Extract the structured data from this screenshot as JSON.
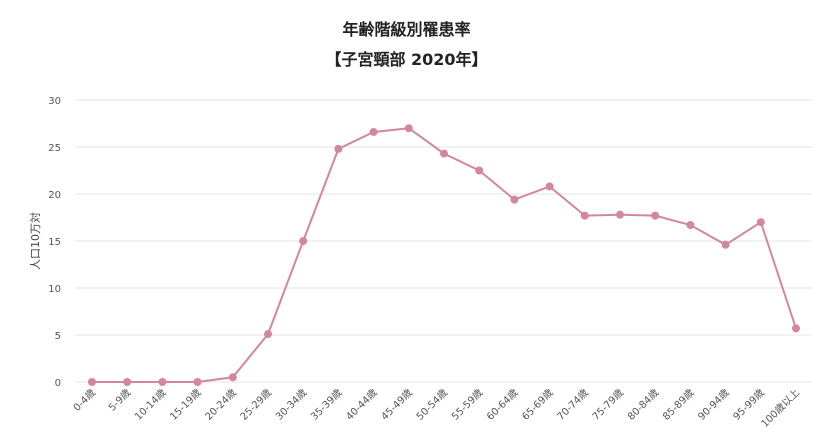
{
  "chart_data": {
    "type": "line",
    "title": "年齢階級別罹患率",
    "subtitle": "【子宮頸部 2020年】",
    "ylabel": "人口10万対",
    "xlabel": "",
    "ylim": [
      0,
      30
    ],
    "yticks": [
      0,
      5,
      10,
      15,
      20,
      25,
      30
    ],
    "grid": true,
    "legend": "none",
    "categories": [
      "0-4歳",
      "5-9歳",
      "10-14歳",
      "15-19歳",
      "20-24歳",
      "25-29歳",
      "30-34歳",
      "35-39歳",
      "40-44歳",
      "45-49歳",
      "50-54歳",
      "55-59歳",
      "60-64歳",
      "65-69歳",
      "70-74歳",
      "75-79歳",
      "80-84歳",
      "85-89歳",
      "90-94歳",
      "95-99歳",
      "100歳以上"
    ],
    "series": [
      {
        "values": [
          0.0,
          0.0,
          0.0,
          0.0,
          0.5,
          5.1,
          15.0,
          24.8,
          26.6,
          27.0,
          24.3,
          22.5,
          19.4,
          20.8,
          17.7,
          17.8,
          17.7,
          16.7,
          14.6,
          17.0,
          5.7
        ]
      }
    ],
    "colors": {
      "line": "#d4869f",
      "grid": "#e4e4e4"
    }
  }
}
